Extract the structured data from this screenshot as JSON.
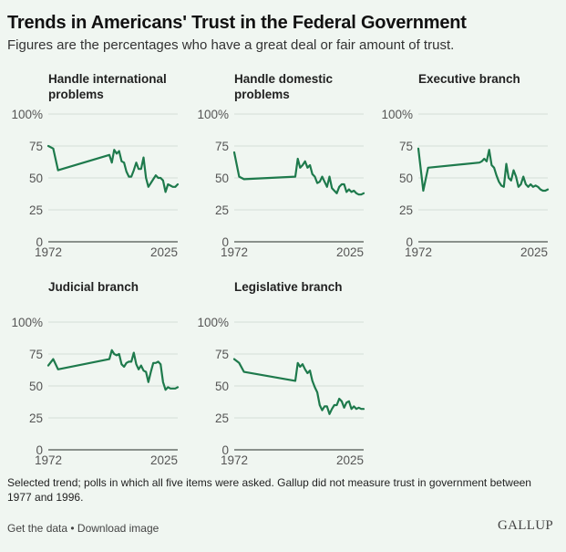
{
  "header": {
    "title": "Trends in Americans' Trust in the Federal Government",
    "subtitle": "Figures are the percentages who have a great deal or fair amount of trust."
  },
  "footer": {
    "note": "Selected trend; polls in which all five items were asked. Gallup did not measure trust in government between 1977 and 1996.",
    "get_data": "Get the data",
    "separator": " • ",
    "download": "Download image",
    "logo": "GALLUP"
  },
  "colors": {
    "line": "#1e7a4c",
    "grid": "#dde6df",
    "axis": "#8a918c",
    "background": "#f0f6f1"
  },
  "chart_data": [
    {
      "type": "line",
      "title": "Handle international problems",
      "xlabel": "",
      "ylabel": "",
      "xlim": [
        1972,
        2025
      ],
      "ylim": [
        0,
        100
      ],
      "x_tick_labels": [
        "1972",
        "2025"
      ],
      "y_tick_labels": [
        "0",
        "25",
        "50",
        "75",
        "100%"
      ],
      "grid": true,
      "x": [
        1972,
        1974,
        1976,
        1997,
        1998,
        1999,
        2000,
        2001,
        2002,
        2003,
        2004,
        2005,
        2006,
        2007,
        2008,
        2009,
        2010,
        2011,
        2012,
        2013,
        2014,
        2015,
        2016,
        2017,
        2018,
        2019,
        2020,
        2021,
        2022,
        2023,
        2024,
        2025
      ],
      "values": [
        75,
        73,
        56,
        68,
        62,
        72,
        69,
        71,
        63,
        62,
        55,
        51,
        51,
        56,
        62,
        57,
        57,
        66,
        50,
        43,
        46,
        49,
        52,
        50,
        50,
        48,
        39,
        45,
        44,
        43,
        43,
        45
      ]
    },
    {
      "type": "line",
      "title": "Handle domestic problems",
      "xlabel": "",
      "ylabel": "",
      "xlim": [
        1972,
        2025
      ],
      "ylim": [
        0,
        100
      ],
      "x_tick_labels": [
        "1972",
        "2025"
      ],
      "y_tick_labels": [
        "0",
        "25",
        "50",
        "75",
        "100%"
      ],
      "grid": true,
      "x": [
        1972,
        1974,
        1976,
        1997,
        1998,
        1999,
        2000,
        2001,
        2002,
        2003,
        2004,
        2005,
        2006,
        2007,
        2008,
        2009,
        2010,
        2011,
        2012,
        2013,
        2014,
        2015,
        2016,
        2017,
        2018,
        2019,
        2020,
        2021,
        2022,
        2023,
        2024,
        2025
      ],
      "values": [
        70,
        51,
        49,
        51,
        65,
        58,
        60,
        63,
        58,
        60,
        53,
        51,
        46,
        47,
        51,
        47,
        43,
        51,
        42,
        40,
        38,
        43,
        45,
        45,
        39,
        41,
        39,
        40,
        38,
        37,
        37,
        38
      ]
    },
    {
      "type": "line",
      "title": "Executive branch",
      "xlabel": "",
      "ylabel": "",
      "xlim": [
        1972,
        2025
      ],
      "ylim": [
        0,
        100
      ],
      "x_tick_labels": [
        "1972",
        "2025"
      ],
      "y_tick_labels": [
        "0",
        "25",
        "50",
        "75",
        "100%"
      ],
      "grid": true,
      "x": [
        1972,
        1974,
        1976,
        1997,
        1998,
        1999,
        2000,
        2001,
        2002,
        2003,
        2004,
        2005,
        2006,
        2007,
        2008,
        2009,
        2010,
        2011,
        2012,
        2013,
        2014,
        2015,
        2016,
        2017,
        2018,
        2019,
        2020,
        2021,
        2022,
        2023,
        2024,
        2025
      ],
      "values": [
        73,
        40,
        58,
        62,
        63,
        65,
        63,
        72,
        60,
        58,
        52,
        47,
        44,
        43,
        61,
        50,
        48,
        56,
        51,
        43,
        45,
        51,
        45,
        43,
        45,
        43,
        44,
        43,
        41,
        40,
        40,
        41
      ]
    },
    {
      "type": "line",
      "title": "Judicial branch",
      "xlabel": "",
      "ylabel": "",
      "xlim": [
        1972,
        2025
      ],
      "ylim": [
        0,
        100
      ],
      "x_tick_labels": [
        "1972",
        "2025"
      ],
      "y_tick_labels": [
        "0",
        "25",
        "50",
        "75",
        "100%"
      ],
      "grid": true,
      "x": [
        1972,
        1974,
        1976,
        1997,
        1998,
        1999,
        2000,
        2001,
        2002,
        2003,
        2004,
        2005,
        2006,
        2007,
        2008,
        2009,
        2010,
        2011,
        2012,
        2013,
        2014,
        2015,
        2016,
        2017,
        2018,
        2019,
        2020,
        2021,
        2022,
        2023,
        2024,
        2025
      ],
      "values": [
        66,
        71,
        63,
        71,
        78,
        75,
        74,
        75,
        67,
        65,
        68,
        69,
        69,
        76,
        67,
        63,
        66,
        62,
        61,
        53,
        61,
        68,
        68,
        69,
        67,
        53,
        47,
        49,
        48,
        48,
        48,
        49
      ]
    },
    {
      "type": "line",
      "title": "Legislative branch",
      "xlabel": "",
      "ylabel": "",
      "xlim": [
        1972,
        2025
      ],
      "ylim": [
        0,
        100
      ],
      "x_tick_labels": [
        "1972",
        "2025"
      ],
      "y_tick_labels": [
        "0",
        "25",
        "50",
        "75",
        "100%"
      ],
      "grid": true,
      "x": [
        1972,
        1974,
        1976,
        1997,
        1998,
        1999,
        2000,
        2001,
        2002,
        2003,
        2004,
        2005,
        2006,
        2007,
        2008,
        2009,
        2010,
        2011,
        2012,
        2013,
        2014,
        2015,
        2016,
        2017,
        2018,
        2019,
        2020,
        2021,
        2022,
        2023,
        2024,
        2025
      ],
      "values": [
        71,
        68,
        61,
        54,
        68,
        65,
        67,
        63,
        60,
        62,
        54,
        49,
        45,
        35,
        31,
        34,
        34,
        28,
        32,
        35,
        35,
        40,
        38,
        33,
        37,
        38,
        32,
        34,
        32,
        33,
        32,
        32
      ]
    }
  ]
}
